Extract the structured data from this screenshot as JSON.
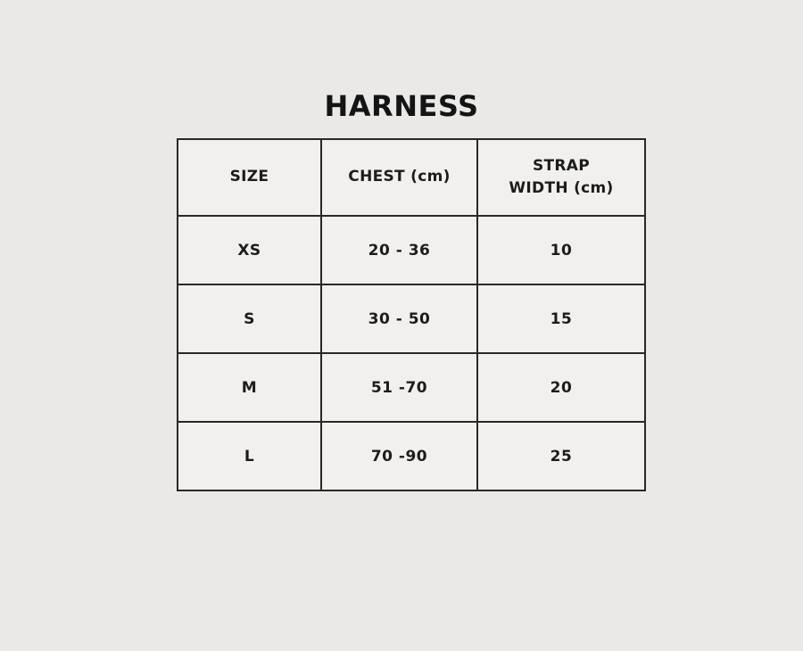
{
  "page": {
    "title": "HARNESS",
    "background_color": "#eae9e7",
    "cell_background_color": "#f1f0ee",
    "border_color": "#282828",
    "text_color": "#1c1c1c"
  },
  "table": {
    "headers": [
      "SIZE",
      "CHEST (cm)",
      "STRAP WIDTH (cm)"
    ],
    "rows": [
      [
        "XS",
        "20 - 36",
        "10"
      ],
      [
        "S",
        "30 - 50",
        "15"
      ],
      [
        "M",
        "51 -70",
        "20"
      ],
      [
        "L",
        "70 -90",
        "25"
      ]
    ]
  }
}
